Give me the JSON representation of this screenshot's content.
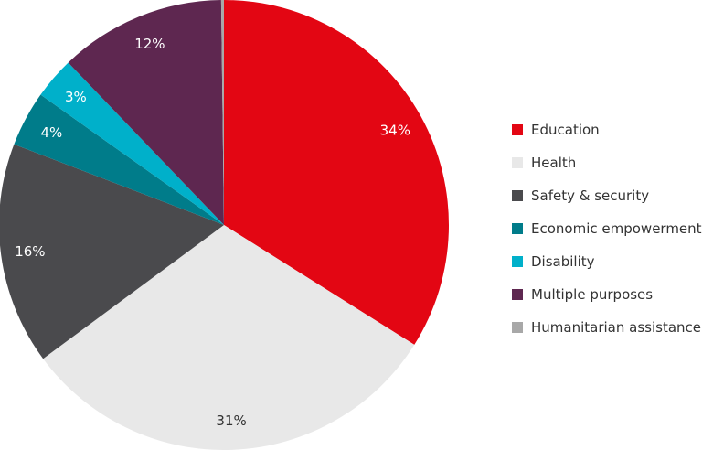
{
  "chart_data": {
    "type": "pie",
    "title": "",
    "legend_position": "right",
    "start_angle": "12 o'clock, clockwise",
    "slices": [
      {
        "name": "Education",
        "value": 34,
        "label": "34%",
        "color": "#e30613"
      },
      {
        "name": "Health",
        "value": 31,
        "label": "31%",
        "color": "#e8e8e8"
      },
      {
        "name": "Safety & security",
        "value": 16,
        "label": "16%",
        "color": "#4a4a4d"
      },
      {
        "name": "Economic empowerment",
        "value": 4,
        "label": "4%",
        "color": "#007c8a"
      },
      {
        "name": "Disability",
        "value": 3,
        "label": "3%",
        "color": "#00b0ca"
      },
      {
        "name": "Multiple purposes",
        "value": 12,
        "label": "12%",
        "color": "#5e2750"
      },
      {
        "name": "Humanitarian assistance",
        "value": 0.2,
        "label": "",
        "color": "#a8a8a8"
      }
    ]
  }
}
